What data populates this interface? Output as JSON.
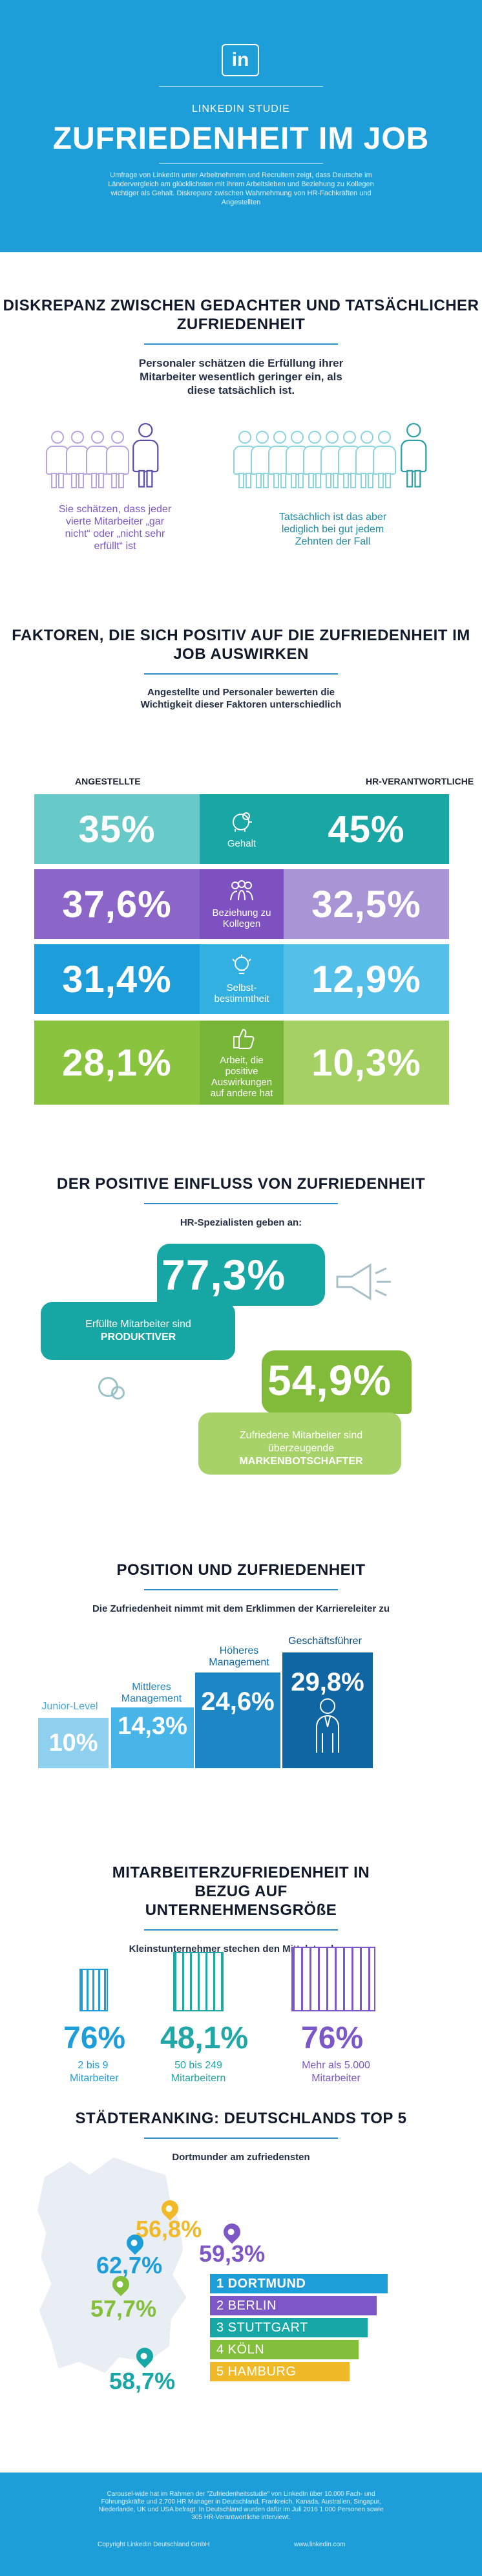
{
  "hero": {
    "logo": "in",
    "kicker": "LINKEDIN STUDIE",
    "title": "ZUFRIEDENHEIT IM JOB",
    "copy": "Umfrage von LinkedIn unter Arbeitnehmern und Recruitern zeigt, dass Deutsche im Ländervergleich am glücklichsten mit ihrem Arbeitsleben und Beziehung zu Kollegen wichtiger als Gehalt. Diskrepanz zwischen Wahrnehmung von HR-Fachkräften und Angestellten"
  },
  "discrepancy": {
    "title": "DISKREPANZ ZWISCHEN GEDACHTER UND TATSÄCHLICHER ZUFRIEDENHEIT",
    "lead": "Personaler schätzen die Erfüllung ihrer Mitarbeiter wesentlich geringer ein, als diese tatsächlich ist.",
    "left_quote": "Sie schätzen, dass jeder vierte Mitarbeiter „gar nicht“ oder „nicht sehr erfüllt“ ist",
    "right_quote": "Tatsächlich ist das aber lediglich bei gut jedem Zehnten der Fall"
  },
  "factors": {
    "title": "FAKTOREN, DIE SICH POSITIV AUF DIE ZUFRIEDENHEIT IM JOB AUSWIRKEN",
    "lead": "Angestellte und Personaler bewerten die Wichtigkeit dieser Faktoren unterschiedlich",
    "left_heading": "ANGESTELLTE",
    "right_heading": "HR-VERANTWORTLICHE",
    "rows": [
      {
        "left": "35%",
        "label": "Gehalt",
        "right": "45%",
        "left_color": "#68c9c9",
        "mid_color": "#18a7a4",
        "right_color": "#18a7a4"
      },
      {
        "left": "37,6%",
        "label": "Beziehung zu Kollegen",
        "right": "32,5%",
        "left_color": "#8b66c8",
        "mid_color": "#7e51c1",
        "right_color": "#a994d6"
      },
      {
        "left": "31,4%",
        "label": "Selbst-bestimmtheit",
        "right": "12,9%",
        "left_color": "#1d9dd9",
        "mid_color": "#32b0e1",
        "right_color": "#54c0e9"
      },
      {
        "left": "28,1%",
        "label": "Arbeit, die positive Auswirkungen auf andere hat",
        "right": "10,3%",
        "left_color": "#8ac43f",
        "mid_color": "#77b638",
        "right_color": "#a5d164"
      }
    ]
  },
  "impact": {
    "title": "DER POSITIVE EINFLUSS VON ZUFRIEDENHEIT",
    "lead": "HR-Spezialisten geben an:",
    "value1": "77,3%",
    "text1_line1": "Erfüllte Mitarbeiter sind",
    "text1_line2": "PRODUKTIVER",
    "value2": "54,9%",
    "text2_line1": "Zufriedene Mitarbeiter sind überzeugende",
    "text2_line2": "MARKENBOTSCHAFTER"
  },
  "position": {
    "title": "POSITION UND ZUFRIEDENHEIT",
    "lead": "Die Zufriedenheit nimmt mit dem Erklimmen der Karriereleiter zu",
    "levels": [
      {
        "label": "Junior-Level",
        "value": "10%",
        "color": "#8fd0ee",
        "label_color": "#47a9dd"
      },
      {
        "label": "Mittleres Management",
        "value": "14,3%",
        "color": "#48b5e8",
        "label_color": "#1980c2"
      },
      {
        "label": "Höheres Management",
        "value": "24,6%",
        "color": "#1d86c4",
        "label_color": "#0f6aa6"
      },
      {
        "label": "Geschäftsführer",
        "value": "29,8%",
        "color": "#0f66a2",
        "label_color": "#0b4d85"
      }
    ]
  },
  "company": {
    "title": "MITARBEITERZUFRIEDENHEIT IN BEZUG AUF UNTERNEHMENSGRÖßE",
    "lead": "Kleinstunternehmer stechen den Mittelstand aus",
    "groups": [
      {
        "value": "76%",
        "label": "2 bis 9 Mitarbeiter",
        "color": "#1e9ed9"
      },
      {
        "value": "48,1%",
        "label": "50 bis 249 Mitarbeitern",
        "color": "#21a7a5"
      },
      {
        "value": "76%",
        "label": "Mehr als 5.000 Mitarbeiter",
        "color": "#7c57c7"
      }
    ]
  },
  "cities": {
    "title": "STÄDTERANKING: DEUTSCHLANDS TOP 5",
    "lead": "Dortmunder am zufriedensten",
    "values": [
      {
        "value": "56,8%",
        "color": "#f0b928"
      },
      {
        "value": "59,3%",
        "color": "#7d57c6"
      },
      {
        "value": "62,7%",
        "color": "#1e9ed9"
      },
      {
        "value": "57,7%",
        "color": "#83bf3b"
      },
      {
        "value": "58,7%",
        "color": "#17a7a6"
      }
    ],
    "ranking": [
      {
        "label": "1 DORTMUND",
        "color": "#1e9ed9"
      },
      {
        "label": "2 BERLIN",
        "color": "#7d57c6"
      },
      {
        "label": "3 STUTTGART",
        "color": "#17a7a6"
      },
      {
        "label": "4 KÖLN",
        "color": "#83bf3b"
      },
      {
        "label": "5 HAMBURG",
        "color": "#f0b928"
      }
    ]
  },
  "footer": {
    "copy": "Carousel-wide hat im Rahmen der \"Zufriedenheitsstudie\" von LinkedIn über 10.000 Fach- und Führungskräfte und 2.700 HR Manager in Deutschland, Frankreich, Kanada, Australien, Singapur, Niederlande, UK und USA befragt. In Deutschland wurden dafür im Juli 2016 1.000 Personen sowie 305 HR-Verantwortliche interviewt.",
    "copyright": "Copyright LinkedIn Deutschland GmbH",
    "website": "www.linkedin.com"
  }
}
